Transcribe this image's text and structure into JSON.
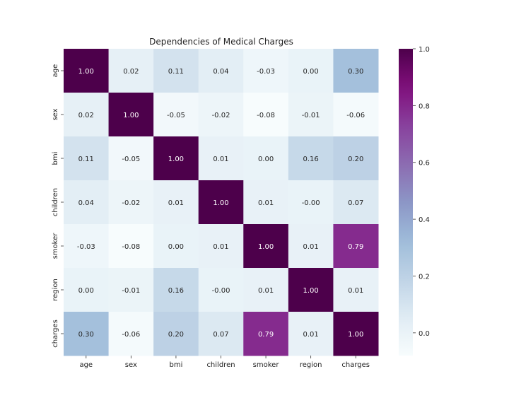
{
  "chart_data": {
    "type": "heatmap",
    "title": "Dependencies of Medical Charges",
    "xlabel": "",
    "ylabel": "",
    "x_categories": [
      "age",
      "sex",
      "bmi",
      "children",
      "smoker",
      "region",
      "charges"
    ],
    "y_categories": [
      "age",
      "sex",
      "bmi",
      "children",
      "smoker",
      "region",
      "charges"
    ],
    "values": [
      [
        1.0,
        0.02,
        0.11,
        0.04,
        -0.03,
        0.0,
        0.3
      ],
      [
        0.02,
        1.0,
        -0.05,
        -0.02,
        -0.08,
        -0.01,
        -0.06
      ],
      [
        0.11,
        -0.05,
        1.0,
        0.01,
        0.0,
        0.16,
        0.2
      ],
      [
        0.04,
        -0.02,
        0.01,
        1.0,
        0.01,
        -0.0,
        0.07
      ],
      [
        -0.03,
        -0.08,
        0.0,
        0.01,
        1.0,
        0.01,
        0.79
      ],
      [
        0.0,
        -0.01,
        0.16,
        -0.0,
        0.01,
        1.0,
        0.01
      ],
      [
        0.3,
        -0.06,
        0.2,
        0.07,
        0.79,
        0.01,
        1.0
      ]
    ],
    "value_labels": [
      [
        "1.00",
        "0.02",
        "0.11",
        "0.04",
        "-0.03",
        "0.00",
        "0.30"
      ],
      [
        "0.02",
        "1.00",
        "-0.05",
        "-0.02",
        "-0.08",
        "-0.01",
        "-0.06"
      ],
      [
        "0.11",
        "-0.05",
        "1.00",
        "0.01",
        "0.00",
        "0.16",
        "0.20"
      ],
      [
        "0.04",
        "-0.02",
        "0.01",
        "1.00",
        "0.01",
        "-0.00",
        "0.07"
      ],
      [
        "-0.03",
        "-0.08",
        "0.00",
        "0.01",
        "1.00",
        "0.01",
        "0.79"
      ],
      [
        "0.00",
        "-0.01",
        "0.16",
        "-0.00",
        "0.01",
        "1.00",
        "0.01"
      ],
      [
        "0.30",
        "-0.06",
        "0.20",
        "0.07",
        "0.79",
        "0.01",
        "1.00"
      ]
    ],
    "colormap": "BuPu",
    "color_range": [
      -0.08,
      1.0
    ],
    "colorbar_ticks": [
      0.0,
      0.2,
      0.4,
      0.6,
      0.8,
      1.0
    ],
    "colorbar_tick_labels": [
      "0.0",
      "0.2",
      "0.4",
      "0.6",
      "0.8",
      "1.0"
    ],
    "colorbar_position": "right",
    "grid": false
  }
}
